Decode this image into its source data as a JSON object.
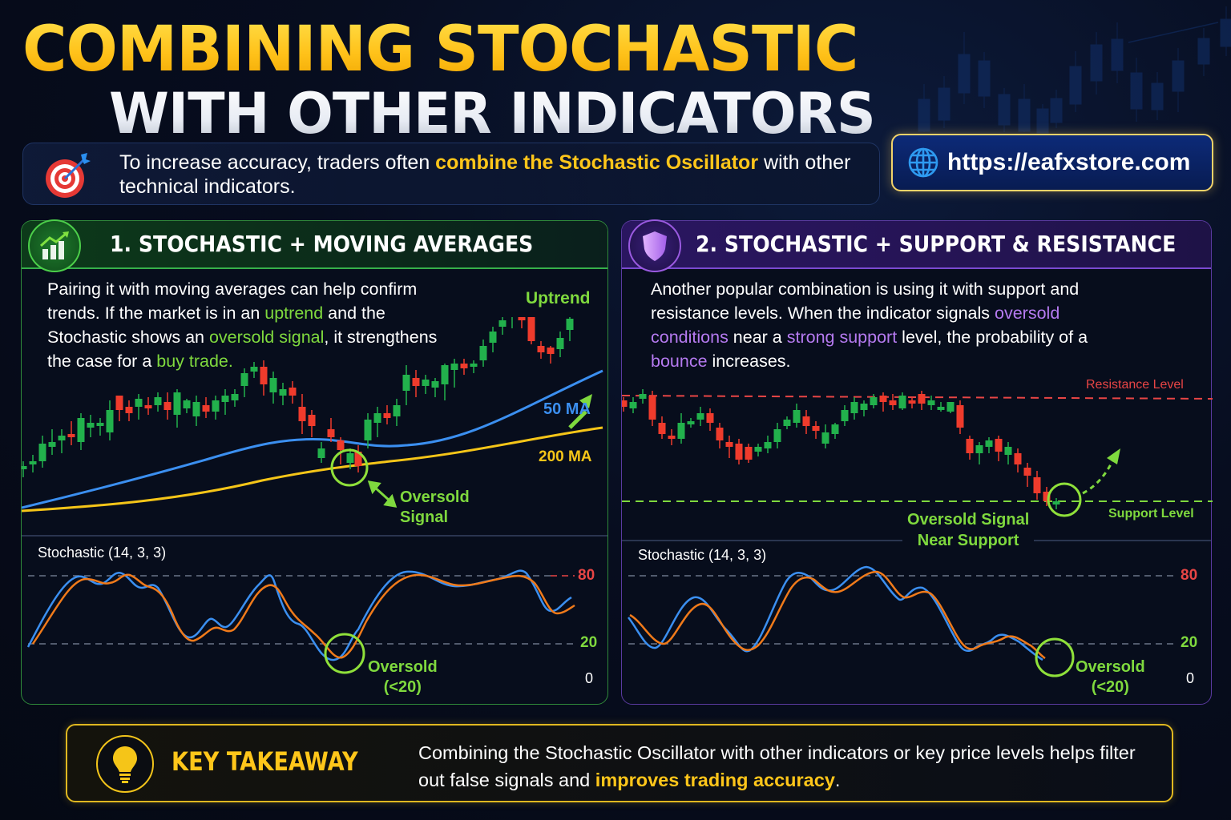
{
  "header": {
    "title_line1": "COMBINING STOCHASTIC",
    "title_line2": "WITH OTHER INDICATORS"
  },
  "intro": {
    "icon": "target-dart-icon",
    "text_before": "To increase accuracy, traders often ",
    "text_highlight": "combine the Stochastic Oscillator",
    "text_after": " with other technical indicators."
  },
  "url_badge": {
    "icon": "globe-icon",
    "label": "https://eafxstore.com"
  },
  "panel_1": {
    "icon": "chart-bars-uptrend-icon",
    "title": "1. STOCHASTIC + MOVING AVERAGES",
    "desc": {
      "p1": "Pairing it with moving averages can help confirm trends. If the market is in an ",
      "h1": "uptrend",
      "p2": " and the Stochastic shows an ",
      "h2": "oversold signal",
      "p3": ", it strengthens the case for a ",
      "h3": "buy trade.",
      "p4": ""
    },
    "labels": {
      "uptrend": "Uptrend",
      "ma50": "50 MA",
      "ma200": "200 MA",
      "oversold_signal_1": "Oversold",
      "oversold_signal_2": "Signal"
    },
    "stochastic": {
      "title": "Stochastic (14, 3, 3)",
      "level_80": "80",
      "level_20": "20",
      "level_0": "0",
      "oversold_1": "Oversold",
      "oversold_2": "(<20)"
    }
  },
  "panel_2": {
    "icon": "shield-icon",
    "title": "2. STOCHASTIC + SUPPORT & RESISTANCE",
    "desc": {
      "p1": "Another popular combination is using it with support and resistance levels. When the indicator signals ",
      "h1": "oversold conditions",
      "p2": " near a ",
      "h2": "strong support",
      "p3": " level, the probability of a ",
      "h3": "bounce",
      "p4": " increases."
    },
    "labels": {
      "resistance": "Resistance Level",
      "support": "Support Level",
      "oversold_near_1": "Oversold Signal",
      "oversold_near_2": "Near Support"
    },
    "stochastic": {
      "title": "Stochastic (14, 3, 3)",
      "level_80": "80",
      "level_20": "20",
      "level_0": "0",
      "oversold_1": "Oversold",
      "oversold_2": "(<20)"
    }
  },
  "takeaway": {
    "icon": "lightbulb-icon",
    "title": "KEY TAKEAWAY",
    "text_before": "Combining the Stochastic Oscillator with other indicators or key price levels helps filter out false signals and ",
    "text_highlight": "improves trading accuracy",
    "text_after": "."
  },
  "colors": {
    "title_yellow": "#ffc61a",
    "green_accent": "#7fd93e",
    "purple_accent": "#b57af0",
    "bull_candle": "#22b14c",
    "bear_candle": "#ef3b2c",
    "ma50": "#3b8ff0",
    "ma200": "#f5c518",
    "stoch_k": "#3b8ff0",
    "stoch_d": "#f07a1a",
    "level_80": "#e84545",
    "level_20": "#7fd93e"
  }
}
